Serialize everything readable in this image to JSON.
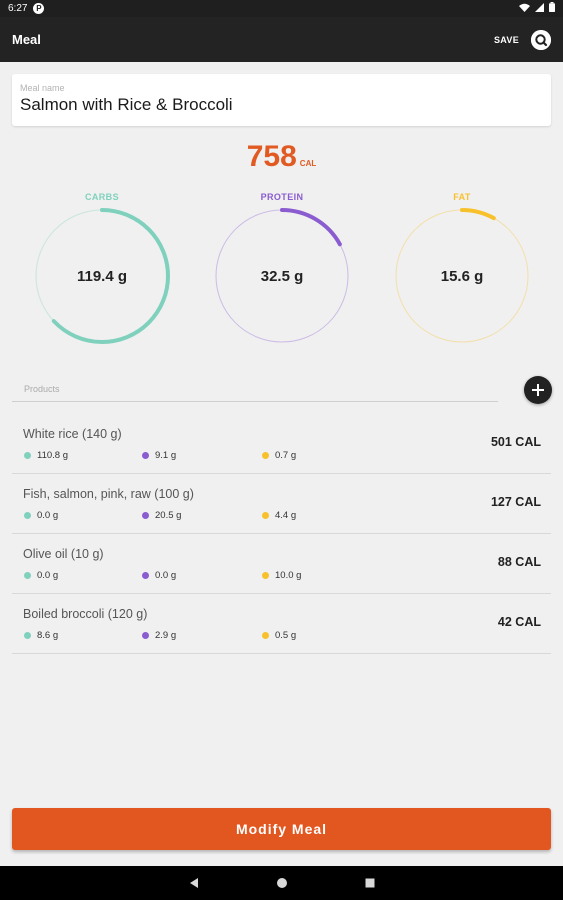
{
  "status_bar": {
    "time": "6:27",
    "app_badge": "P"
  },
  "app_bar": {
    "title": "Meal",
    "save_label": "SAVE"
  },
  "meal": {
    "name_label": "Meal name",
    "name": "Salmon with Rice & Broccoli"
  },
  "calories": {
    "value": "758",
    "unit": "CAL"
  },
  "macros": [
    {
      "label": "CARBS",
      "value": "119.4 g",
      "color": "#7fd1bd",
      "fraction": 0.63
    },
    {
      "label": "PROTEIN",
      "value": "32.5 g",
      "color": "#8a5cd0",
      "fraction": 0.17
    },
    {
      "label": "FAT",
      "value": "15.6 g",
      "color": "#f8c12c",
      "fraction": 0.08
    }
  ],
  "products_label": "Products",
  "products": [
    {
      "name": "White rice (140 g)",
      "carbs": "110.8 g",
      "protein": "9.1 g",
      "fat": "0.7 g",
      "calories": "501 CAL"
    },
    {
      "name": "Fish, salmon, pink, raw (100 g)",
      "carbs": "0.0 g",
      "protein": "20.5 g",
      "fat": "4.4 g",
      "calories": "127 CAL"
    },
    {
      "name": "Olive oil (10 g)",
      "carbs": "0.0 g",
      "protein": "0.0 g",
      "fat": "10.0 g",
      "calories": "88 CAL"
    },
    {
      "name": "Boiled broccoli (120 g)",
      "carbs": "8.6 g",
      "protein": "2.9 g",
      "fat": "0.5 g",
      "calories": "42 CAL"
    }
  ],
  "modify_button_label": "Modify Meal",
  "colors": {
    "accent": "#e2561f",
    "carbs": "#7fd1bd",
    "protein": "#8a5cd0",
    "fat": "#f8c12c"
  },
  "icons": {
    "add": "plus-icon",
    "help": "help-icon",
    "back": "nav-back-icon",
    "home": "nav-home-icon",
    "recents": "nav-recents-icon"
  }
}
